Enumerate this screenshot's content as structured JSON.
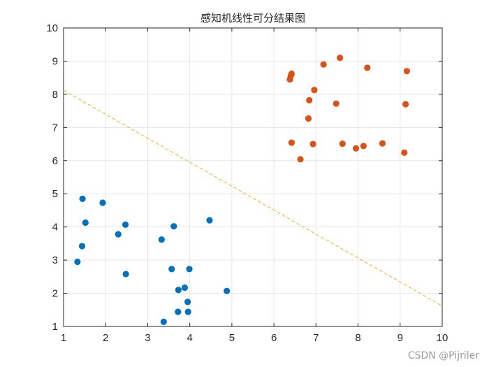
{
  "chart_data": {
    "type": "scatter",
    "title": "感知机线性可分结果图",
    "xlabel": "",
    "ylabel": "",
    "xlim": [
      1,
      10
    ],
    "ylim": [
      1,
      10
    ],
    "xticks": [
      "1",
      "2",
      "3",
      "4",
      "5",
      "6",
      "7",
      "8",
      "9",
      "10"
    ],
    "yticks": [
      "1",
      "2",
      "3",
      "4",
      "5",
      "6",
      "7",
      "8",
      "9",
      "10"
    ],
    "grid": true,
    "series": [
      {
        "color": "#0072BD",
        "points": [
          [
            1.45,
            4.85
          ],
          [
            1.93,
            4.73
          ],
          [
            1.52,
            4.13
          ],
          [
            2.47,
            4.07
          ],
          [
            2.3,
            3.78
          ],
          [
            1.44,
            3.42
          ],
          [
            1.33,
            2.95
          ],
          [
            2.48,
            2.58
          ],
          [
            3.33,
            3.62
          ],
          [
            3.62,
            4.02
          ],
          [
            4.47,
            4.2
          ],
          [
            3.57,
            2.73
          ],
          [
            3.99,
            2.73
          ],
          [
            3.73,
            2.1
          ],
          [
            3.88,
            2.17
          ],
          [
            3.95,
            1.74
          ],
          [
            4.88,
            2.07
          ],
          [
            3.72,
            1.44
          ],
          [
            3.96,
            1.44
          ],
          [
            3.38,
            1.14
          ]
        ]
      },
      {
        "color": "#D95319",
        "points": [
          [
            6.38,
            8.45
          ],
          [
            6.4,
            8.55
          ],
          [
            6.42,
            8.62
          ],
          [
            6.96,
            8.13
          ],
          [
            7.18,
            8.9
          ],
          [
            7.57,
            9.1
          ],
          [
            8.22,
            8.8
          ],
          [
            9.16,
            8.7
          ],
          [
            6.84,
            7.82
          ],
          [
            7.48,
            7.72
          ],
          [
            9.13,
            7.7
          ],
          [
            6.82,
            7.27
          ],
          [
            6.42,
            6.54
          ],
          [
            6.93,
            6.5
          ],
          [
            7.63,
            6.51
          ],
          [
            8.13,
            6.44
          ],
          [
            7.95,
            6.37
          ],
          [
            8.58,
            6.52
          ],
          [
            9.1,
            6.24
          ],
          [
            6.63,
            6.04
          ]
        ]
      }
    ],
    "decision_line": {
      "color": "#EDB120",
      "style": "dashed",
      "x": [
        1,
        10
      ],
      "y": [
        8.12,
        1.62
      ]
    }
  },
  "watermark": "CSDN @Pijriler"
}
